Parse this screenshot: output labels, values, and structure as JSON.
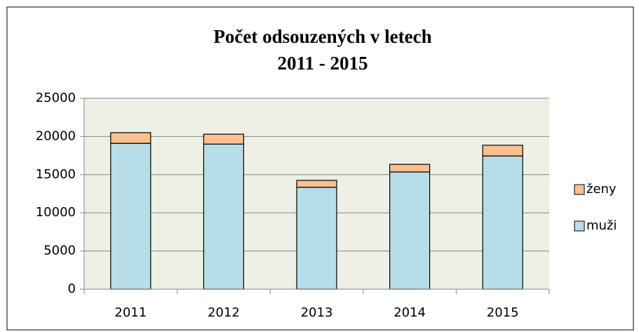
{
  "chart_data": {
    "type": "bar",
    "stacked": true,
    "title": "Počet odsouzených v letech",
    "subtitle": "2011 - 2015",
    "categories": [
      "2011",
      "2012",
      "2013",
      "2014",
      "2015"
    ],
    "series": [
      {
        "name": "muži",
        "color": "#b7dde8",
        "values": [
          19100,
          19000,
          13350,
          15350,
          17450
        ]
      },
      {
        "name": "ženy",
        "color": "#fac090",
        "values": [
          1400,
          1300,
          900,
          1000,
          1400
        ]
      }
    ],
    "ylim": [
      0,
      25000
    ],
    "yticks": [
      0,
      5000,
      10000,
      15000,
      20000,
      25000
    ],
    "grid": true
  }
}
